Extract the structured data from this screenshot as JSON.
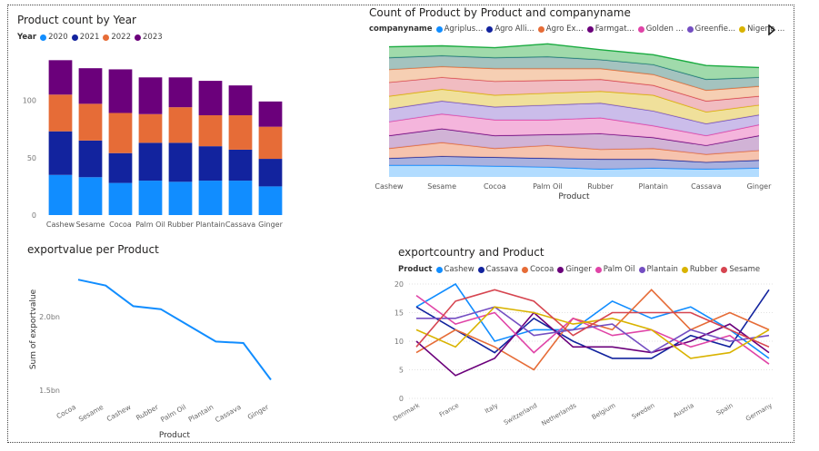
{
  "colors": {
    "c2020": "#118DFF",
    "c2021": "#12239E",
    "c2022": "#E66C37",
    "c2023": "#6B007B",
    "pal": [
      "#118DFF",
      "#12239E",
      "#E66C37",
      "#6B007B",
      "#E044A7",
      "#744EC2",
      "#D9B300",
      "#D64550"
    ]
  },
  "chart_data": [
    {
      "id": "product-count-by-year",
      "type": "bar",
      "stacked": true,
      "title": "Product count by Year",
      "legend_title": "Year",
      "categories": [
        "Cashew",
        "Sesame",
        "Cocoa",
        "Palm Oil",
        "Rubber",
        "Plantain",
        "Cassava",
        "Ginger"
      ],
      "series": [
        {
          "name": "2020",
          "values": [
            35,
            33,
            28,
            30,
            29,
            30,
            30,
            25
          ]
        },
        {
          "name": "2021",
          "values": [
            38,
            32,
            26,
            33,
            34,
            30,
            27,
            24
          ]
        },
        {
          "name": "2022",
          "values": [
            32,
            32,
            35,
            25,
            31,
            27,
            30,
            28
          ]
        },
        {
          "name": "2023",
          "values": [
            30,
            31,
            38,
            32,
            26,
            30,
            26,
            22
          ]
        }
      ],
      "yticks": [
        0,
        50,
        100
      ],
      "ylim": [
        0,
        140
      ],
      "xlabel": "",
      "ylabel": ""
    },
    {
      "id": "count-product-by-company",
      "type": "area",
      "stacked": true,
      "title": "Count of Product by Product and companyname",
      "legend_title": "companyname",
      "legend_entries": [
        "Agriplus...",
        "Agro Alli...",
        "Agro Ex...",
        "Farmgat...",
        "Golden ...",
        "Greenfie...",
        "Nigeria ..."
      ],
      "categories": [
        "Cashew",
        "Sesame",
        "Cocoa",
        "Palm Oil",
        "Rubber",
        "Plantain",
        "Cassava",
        "Ginger"
      ],
      "series_values": [
        [
          12,
          12,
          11,
          10,
          8,
          9,
          8,
          9
        ],
        [
          7,
          9,
          9,
          9,
          10,
          9,
          7,
          8
        ],
        [
          10,
          14,
          9,
          13,
          10,
          11,
          8,
          10
        ],
        [
          13,
          14,
          13,
          11,
          16,
          11,
          9,
          15
        ],
        [
          14,
          15,
          16,
          15,
          16,
          12,
          10,
          11
        ],
        [
          13,
          13,
          13,
          15,
          15,
          15,
          12,
          10
        ],
        [
          13,
          12,
          12,
          12,
          12,
          16,
          12,
          10
        ],
        [
          14,
          12,
          14,
          13,
          12,
          10,
          11,
          9
        ],
        [
          13,
          11,
          13,
          12,
          11,
          11,
          11,
          10
        ],
        [
          12,
          11,
          11,
          12,
          9,
          10,
          11,
          9
        ],
        [
          11,
          10,
          10,
          13,
          10,
          10,
          14,
          10
        ]
      ],
      "xlabel": "Product",
      "ylim": [
        0,
        150
      ]
    },
    {
      "id": "exportvalue-per-product",
      "type": "line",
      "title": "exportvalue per Product",
      "categories": [
        "Cocoa",
        "Sesame",
        "Cashew",
        "Rubber",
        "Palm Oil",
        "Plantain",
        "Cassava",
        "Ginger"
      ],
      "values": [
        2.25,
        2.21,
        2.07,
        2.05,
        1.94,
        1.83,
        1.82,
        1.57
      ],
      "yticks": [
        {
          "v": 2.0,
          "label": "2.0bn"
        },
        {
          "v": 1.5,
          "label": "1.5bn"
        }
      ],
      "ylim": [
        1.45,
        2.35
      ],
      "xlabel": "Product",
      "ylabel": "Sum of exportvalue"
    },
    {
      "id": "exportcountry-and-product",
      "type": "line",
      "title": "exportcountry and Product",
      "legend_title": "Product",
      "categories": [
        "Denmark",
        "France",
        "Italy",
        "Switzerland",
        "Netherlands",
        "Belgium",
        "Sweden",
        "Austria",
        "Spain",
        "Germany"
      ],
      "series": [
        {
          "name": "Cashew",
          "values": [
            16,
            20,
            10,
            12,
            12,
            17,
            14,
            16,
            12,
            7
          ]
        },
        {
          "name": "Cassava",
          "values": [
            16,
            12,
            8,
            14,
            10,
            7,
            7,
            11,
            9,
            19
          ]
        },
        {
          "name": "Cocoa",
          "values": [
            8,
            12,
            9,
            5,
            14,
            12,
            19,
            12,
            15,
            12
          ]
        },
        {
          "name": "Ginger",
          "values": [
            10,
            4,
            7,
            15,
            9,
            9,
            8,
            10,
            13,
            8
          ]
        },
        {
          "name": "Palm Oil",
          "values": [
            18,
            13,
            15,
            8,
            14,
            11,
            12,
            9,
            11,
            6
          ]
        },
        {
          "name": "Plantain",
          "values": [
            14,
            14,
            16,
            11,
            12,
            13,
            8,
            12,
            10,
            11
          ]
        },
        {
          "name": "Rubber",
          "values": [
            12,
            9,
            16,
            15,
            13,
            14,
            12,
            7,
            8,
            12
          ]
        },
        {
          "name": "Sesame",
          "values": [
            9,
            17,
            19,
            17,
            11,
            15,
            15,
            15,
            12,
            9
          ]
        }
      ],
      "yticks": [
        0,
        5,
        10,
        15,
        20
      ],
      "ylim": [
        0,
        20
      ],
      "xlabel": "",
      "ylabel": ""
    }
  ]
}
